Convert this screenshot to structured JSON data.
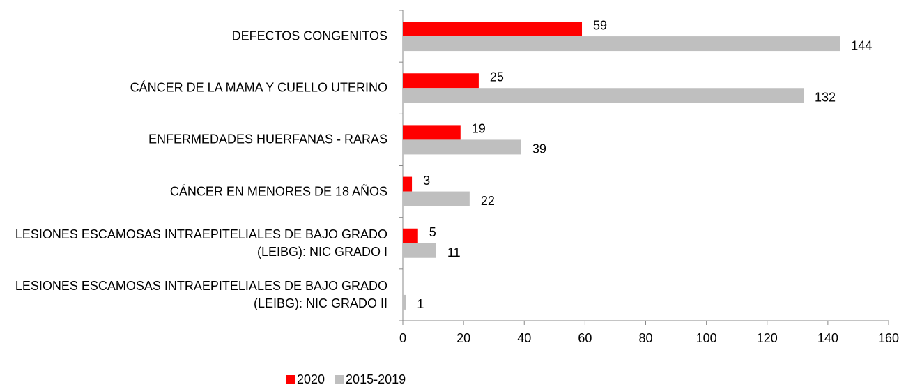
{
  "chart_data": {
    "type": "bar",
    "orientation": "horizontal",
    "categories": [
      "DEFECTOS CONGENITOS",
      "CÁNCER DE LA MAMA Y CUELLO UTERINO",
      "ENFERMEDADES HUERFANAS - RARAS",
      "CÁNCER EN MENORES DE 18 AÑOS",
      "LESIONES ESCAMOSAS INTRAEPITELIALES DE BAJO GRADO (LEIBG): NIC GRADO I",
      "LESIONES ESCAMOSAS INTRAEPITELIALES DE BAJO GRADO (LEIBG): NIC GRADO II"
    ],
    "series": [
      {
        "name": "2020",
        "color": "#ff0000",
        "values": [
          59,
          25,
          19,
          3,
          5,
          null
        ]
      },
      {
        "name": "2015-2019",
        "color": "#bfbfbf",
        "values": [
          144,
          132,
          39,
          22,
          11,
          1
        ]
      }
    ],
    "xlim": [
      0,
      160
    ],
    "xticks": [
      0,
      20,
      40,
      60,
      80,
      100,
      120,
      140,
      160
    ],
    "legend": "bottom"
  }
}
